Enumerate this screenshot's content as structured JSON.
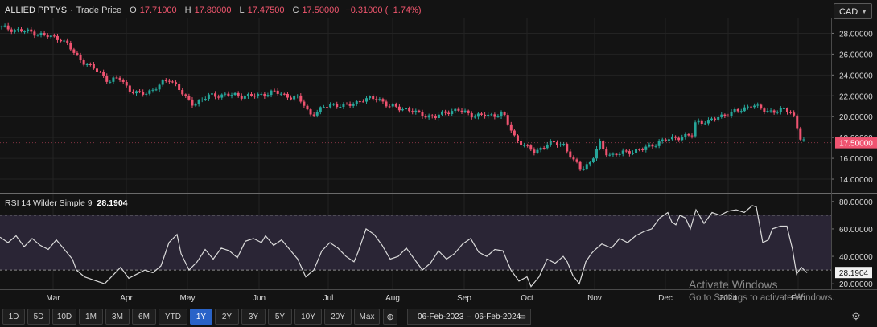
{
  "header": {
    "symbol": "ALLIED PPTYS",
    "series_label": "Trade Price",
    "o_label": "O",
    "o_value": "17.71000",
    "h_label": "H",
    "h_value": "17.80000",
    "l_label": "L",
    "l_value": "17.47500",
    "c_label": "C",
    "c_value": "17.50000",
    "change": "−0.31000 (−1.74%)"
  },
  "currency": "CAD",
  "colors": {
    "up": "#26a69a",
    "down": "#ef5370",
    "rsi_line": "#d9d9d9",
    "rsi_band": "#2a2535",
    "price_tag": "#ef5370"
  },
  "rsi_header": {
    "label": "RSI 14 Wilder Simple 9",
    "value": "28.1904"
  },
  "chart_data": [
    {
      "type": "candlestick",
      "title": "ALLIED PPTYS · Trade Price",
      "ylim": [
        13,
        29.5
      ],
      "yticks": [
        "28.00000",
        "26.00000",
        "24.00000",
        "22.00000",
        "20.00000",
        "18.00000",
        "16.00000",
        "14.00000"
      ],
      "last_price_tag": "17.50000",
      "x_labels": [
        "Mar",
        "Apr",
        "May",
        "Jun",
        "Jul",
        "Aug",
        "Sep",
        "Oct",
        "Nov",
        "Dec",
        "2024",
        "Feb"
      ],
      "close_path": [
        [
          0,
          28.6
        ],
        [
          20,
          28.3
        ],
        [
          40,
          28.1
        ],
        [
          60,
          27.7
        ],
        [
          75,
          27.5
        ],
        [
          85,
          26.8
        ],
        [
          95,
          25.8
        ],
        [
          110,
          24.9
        ],
        [
          125,
          24.2
        ],
        [
          135,
          23.4
        ],
        [
          150,
          23.7
        ],
        [
          160,
          22.6
        ],
        [
          175,
          22.1
        ],
        [
          190,
          22.6
        ],
        [
          200,
          23.1
        ],
        [
          210,
          23.6
        ],
        [
          220,
          23.0
        ],
        [
          230,
          21.8
        ],
        [
          240,
          21.2
        ],
        [
          260,
          22.0
        ],
        [
          280,
          22.1
        ],
        [
          300,
          22.0
        ],
        [
          320,
          22.0
        ],
        [
          340,
          22.4
        ],
        [
          355,
          22.0
        ],
        [
          370,
          21.8
        ],
        [
          378,
          21.1
        ],
        [
          385,
          20.2
        ],
        [
          395,
          20.5
        ],
        [
          410,
          21.2
        ],
        [
          430,
          21.0
        ],
        [
          450,
          21.6
        ],
        [
          470,
          21.8
        ],
        [
          482,
          21.0
        ],
        [
          500,
          20.8
        ],
        [
          520,
          20.3
        ],
        [
          540,
          19.9
        ],
        [
          555,
          20.5
        ],
        [
          570,
          20.6
        ],
        [
          590,
          20.1
        ],
        [
          610,
          20.1
        ],
        [
          625,
          20.3
        ],
        [
          630,
          19.5
        ],
        [
          640,
          18.0
        ],
        [
          655,
          17.0
        ],
        [
          665,
          16.6
        ],
        [
          680,
          17.4
        ],
        [
          700,
          17.4
        ],
        [
          712,
          15.8
        ],
        [
          722,
          15.0
        ],
        [
          735,
          15.7
        ],
        [
          745,
          17.5
        ],
        [
          752,
          16.6
        ],
        [
          760,
          16.3
        ],
        [
          780,
          16.6
        ],
        [
          800,
          16.9
        ],
        [
          820,
          17.6
        ],
        [
          840,
          18.0
        ],
        [
          860,
          18.2
        ],
        [
          865,
          19.6
        ],
        [
          880,
          19.5
        ],
        [
          900,
          20.2
        ],
        [
          920,
          20.6
        ],
        [
          935,
          21.2
        ],
        [
          945,
          20.7
        ],
        [
          960,
          20.5
        ],
        [
          975,
          20.6
        ],
        [
          985,
          20.5
        ],
        [
          990,
          19.1
        ],
        [
          995,
          17.9
        ],
        [
          1003,
          17.5
        ]
      ]
    },
    {
      "type": "line",
      "title": "RSI 14 Wilder Simple 9",
      "ylim": [
        16,
        84
      ],
      "yticks": [
        "80.00000",
        "60.00000",
        "40.00000",
        "20.00000"
      ],
      "reference_lines": [
        70,
        30
      ],
      "last_value_tag": "28.1904",
      "series": [
        {
          "values": [
            [
              0,
              54
            ],
            [
              10,
              50
            ],
            [
              20,
              55
            ],
            [
              30,
              47
            ],
            [
              40,
              53
            ],
            [
              50,
              48
            ],
            [
              60,
              45
            ],
            [
              70,
              52
            ],
            [
              80,
              45
            ],
            [
              90,
              38
            ],
            [
              95,
              30
            ],
            [
              105,
              25
            ],
            [
              120,
              22
            ],
            [
              130,
              20
            ],
            [
              140,
              26
            ],
            [
              150,
              32
            ],
            [
              160,
              24
            ],
            [
              170,
              27
            ],
            [
              180,
              30
            ],
            [
              190,
              28
            ],
            [
              200,
              33
            ],
            [
              210,
              50
            ],
            [
              220,
              56
            ],
            [
              225,
              42
            ],
            [
              235,
              30
            ],
            [
              245,
              36
            ],
            [
              255,
              45
            ],
            [
              265,
              38
            ],
            [
              275,
              46
            ],
            [
              285,
              44
            ],
            [
              295,
              39
            ],
            [
              305,
              51
            ],
            [
              315,
              53
            ],
            [
              325,
              50
            ],
            [
              330,
              55
            ],
            [
              340,
              48
            ],
            [
              350,
              52
            ],
            [
              360,
              45
            ],
            [
              370,
              38
            ],
            [
              380,
              25
            ],
            [
              390,
              30
            ],
            [
              400,
              44
            ],
            [
              410,
              50
            ],
            [
              420,
              46
            ],
            [
              430,
              40
            ],
            [
              440,
              36
            ],
            [
              445,
              43
            ],
            [
              455,
              60
            ],
            [
              465,
              56
            ],
            [
              475,
              48
            ],
            [
              485,
              38
            ],
            [
              495,
              40
            ],
            [
              505,
              46
            ],
            [
              515,
              38
            ],
            [
              525,
              30
            ],
            [
              535,
              35
            ],
            [
              545,
              44
            ],
            [
              555,
              38
            ],
            [
              565,
              42
            ],
            [
              575,
              49
            ],
            [
              585,
              53
            ],
            [
              595,
              43
            ],
            [
              605,
              40
            ],
            [
              615,
              45
            ],
            [
              625,
              44
            ],
            [
              635,
              30
            ],
            [
              645,
              22
            ],
            [
              655,
              25
            ],
            [
              660,
              18
            ],
            [
              670,
              25
            ],
            [
              680,
              38
            ],
            [
              690,
              35
            ],
            [
              700,
              40
            ],
            [
              705,
              36
            ],
            [
              712,
              26
            ],
            [
              720,
              20
            ],
            [
              728,
              36
            ],
            [
              735,
              42
            ],
            [
              740,
              45
            ],
            [
              748,
              49
            ],
            [
              760,
              46
            ],
            [
              770,
              53
            ],
            [
              780,
              50
            ],
            [
              790,
              55
            ],
            [
              800,
              58
            ],
            [
              810,
              60
            ],
            [
              820,
              68
            ],
            [
              830,
              72
            ],
            [
              835,
              65
            ],
            [
              840,
              63
            ],
            [
              845,
              70
            ],
            [
              852,
              68
            ],
            [
              858,
              60
            ],
            [
              865,
              74
            ],
            [
              875,
              64
            ],
            [
              885,
              72
            ],
            [
              895,
              70
            ],
            [
              905,
              73
            ],
            [
              915,
              74
            ],
            [
              925,
              72
            ],
            [
              935,
              77
            ],
            [
              940,
              76
            ],
            [
              948,
              50
            ],
            [
              955,
              52
            ],
            [
              960,
              60
            ],
            [
              970,
              62
            ],
            [
              978,
              62
            ],
            [
              985,
              45
            ],
            [
              990,
              27
            ],
            [
              996,
              32
            ],
            [
              1003,
              28
            ]
          ]
        }
      ]
    }
  ],
  "toolbar": {
    "ranges": [
      "1D",
      "5D",
      "10D",
      "1M",
      "3M",
      "6M",
      "YTD",
      "1Y",
      "2Y",
      "3Y",
      "5Y",
      "10Y",
      "20Y",
      "Max"
    ],
    "active": "1Y",
    "date_from": "06-Feb-2023",
    "date_sep": "–",
    "date_to": "06-Feb-2024"
  },
  "watermark": {
    "line1": "Activate Windows",
    "line2": "Go to Settings to activate Windows."
  }
}
